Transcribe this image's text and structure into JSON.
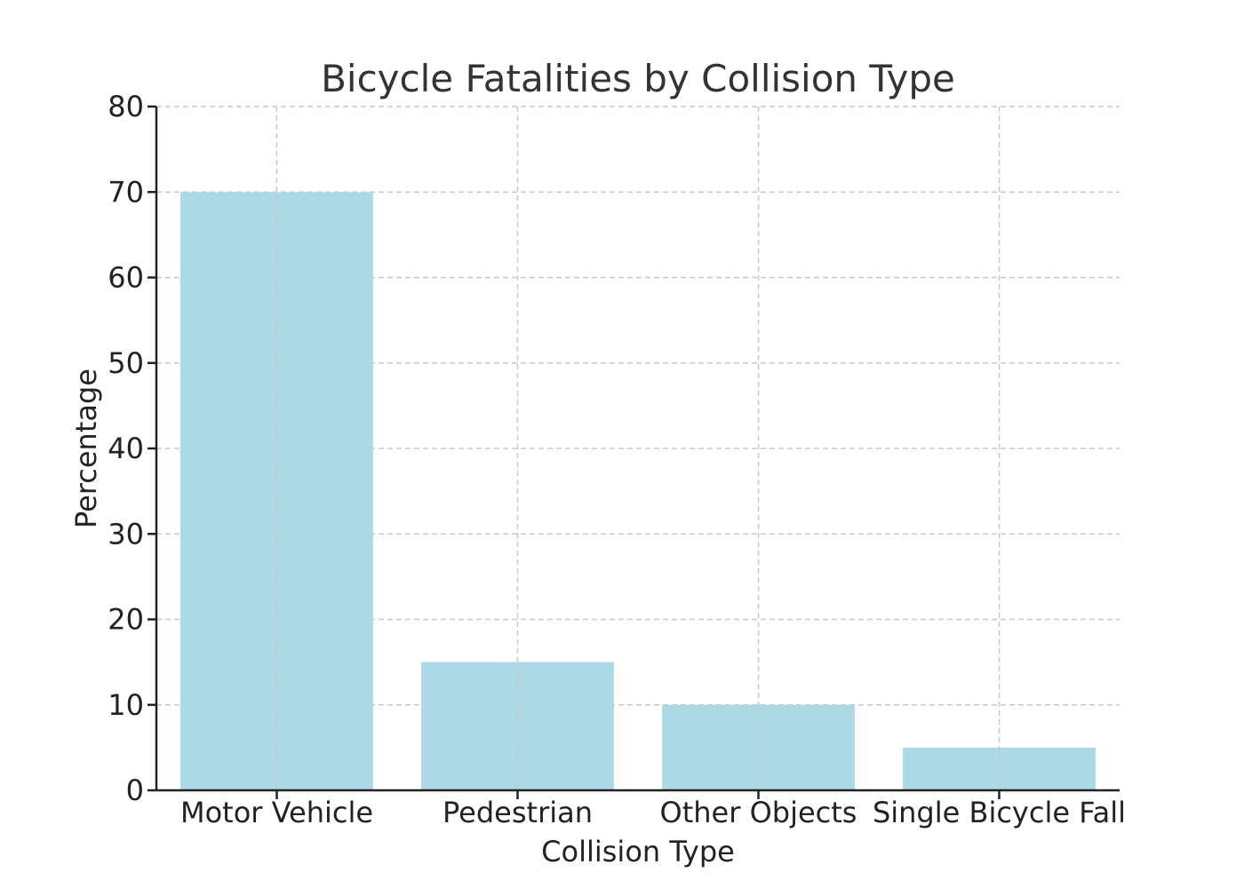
{
  "chart_data": {
    "type": "bar",
    "title": "Bicycle Fatalities by Collision Type",
    "xlabel": "Collision Type",
    "ylabel": "Percentage",
    "categories": [
      "Motor Vehicle",
      "Pedestrian",
      "Other Objects",
      "Single Bicycle Fall"
    ],
    "values": [
      70,
      15,
      10,
      5
    ],
    "ylim": [
      0,
      80
    ],
    "yticks": [
      "0",
      "10",
      "20",
      "30",
      "40",
      "50",
      "60",
      "70",
      "80"
    ],
    "grid": true,
    "legend": "none",
    "colors": {
      "bar": "#add8e6",
      "axis": "#222222",
      "grid": "#c8c8c8",
      "title": "#333333"
    }
  }
}
